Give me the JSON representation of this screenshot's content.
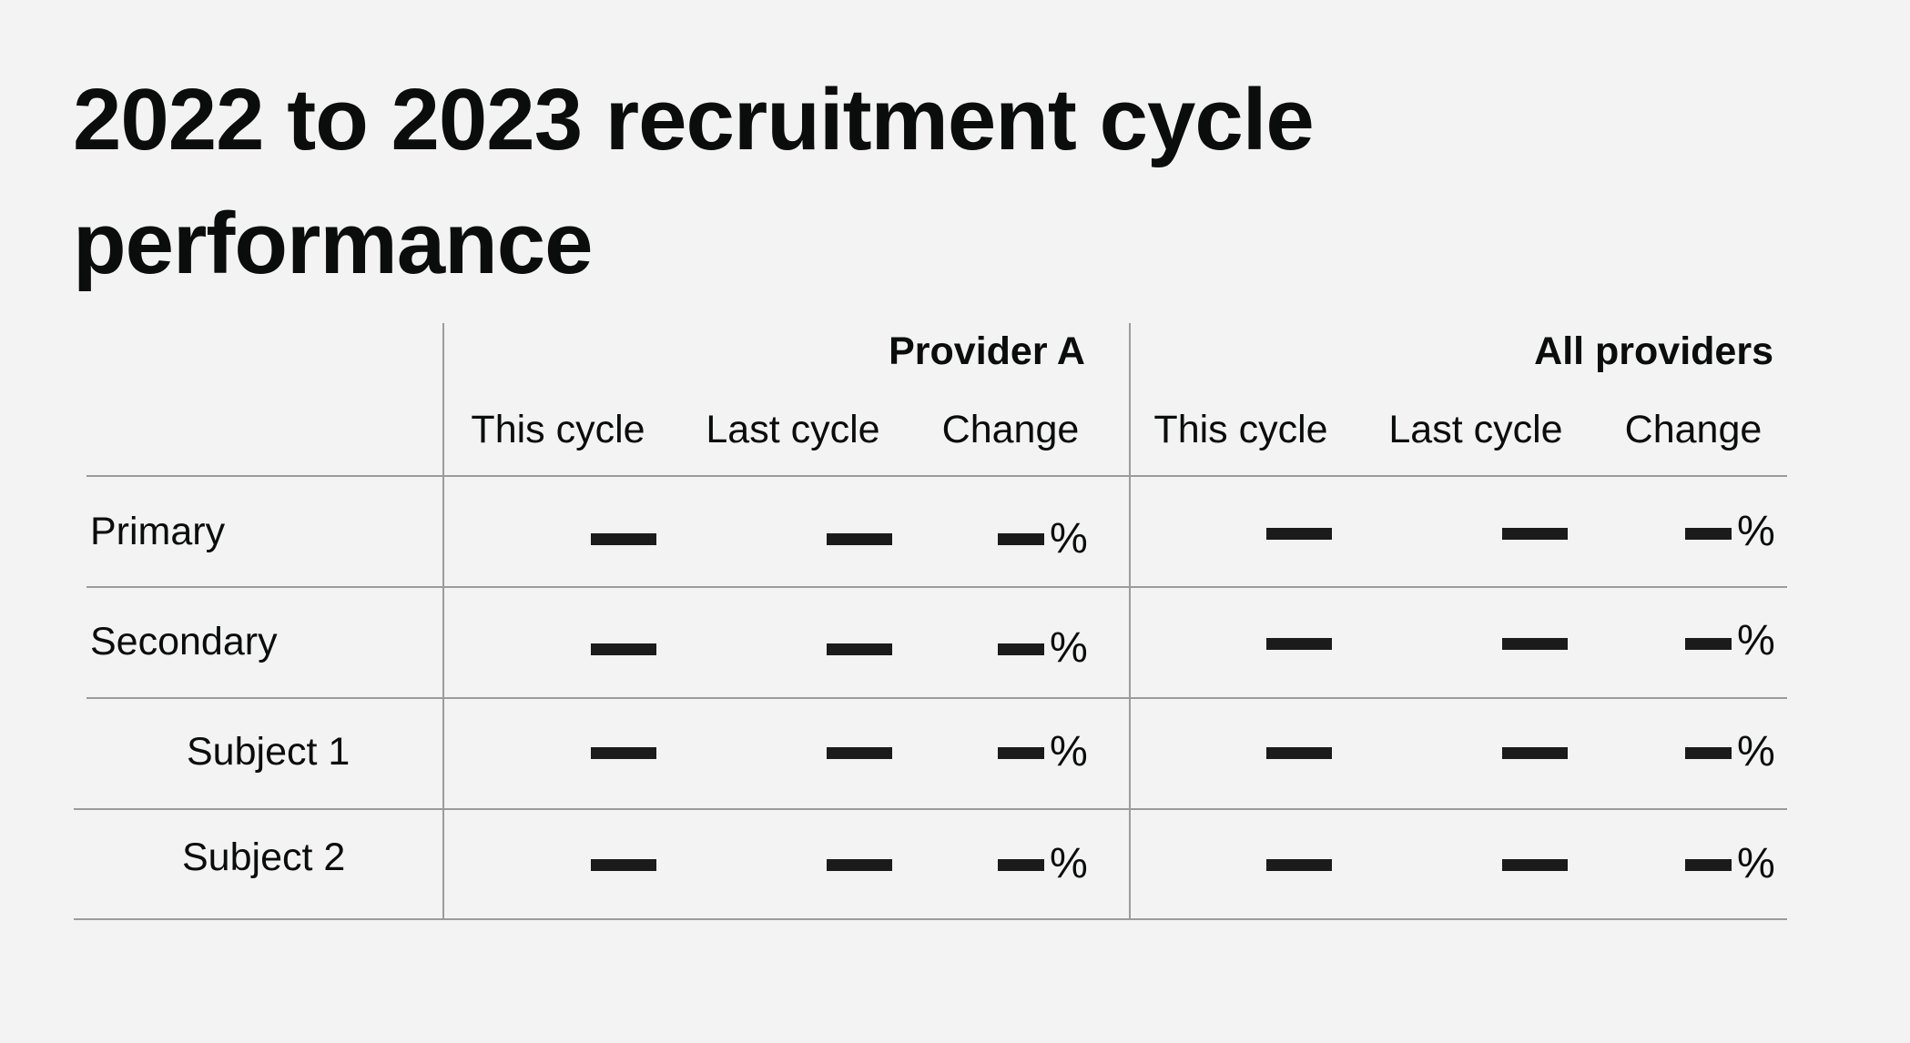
{
  "page_title": "2022 to 2023 recruitment cycle performance",
  "table": {
    "groups": [
      {
        "name": "Provider A",
        "columns": [
          "This cycle",
          "Last cycle",
          "Change"
        ]
      },
      {
        "name": "All providers",
        "columns": [
          "This cycle",
          "Last cycle",
          "Change"
        ]
      }
    ],
    "rows": [
      {
        "label": "Primary",
        "provider_a": {
          "this_cycle": "",
          "last_cycle": "",
          "change_suffix": "%"
        },
        "all_providers": {
          "this_cycle": "",
          "last_cycle": "",
          "change_suffix": "%"
        }
      },
      {
        "label": "Secondary",
        "provider_a": {
          "this_cycle": "",
          "last_cycle": "",
          "change_suffix": "%"
        },
        "all_providers": {
          "this_cycle": "",
          "last_cycle": "",
          "change_suffix": "%"
        }
      },
      {
        "label": "Subject 1",
        "provider_a": {
          "this_cycle": "",
          "last_cycle": "",
          "change_suffix": "%"
        },
        "all_providers": {
          "this_cycle": "",
          "last_cycle": "",
          "change_suffix": "%"
        }
      },
      {
        "label": "Subject 2",
        "provider_a": {
          "this_cycle": "",
          "last_cycle": "",
          "change_suffix": "%"
        },
        "all_providers": {
          "this_cycle": "",
          "last_cycle": "",
          "change_suffix": "%"
        }
      }
    ]
  },
  "colors": {
    "background": "#f3f3f3",
    "text": "#0b0c0c",
    "rule": "#9b9b9b",
    "placeholder": "#1b1b1b"
  }
}
